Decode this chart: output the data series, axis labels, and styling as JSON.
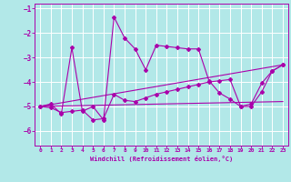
{
  "xlabel": "Windchill (Refroidissement éolien,°C)",
  "background_color": "#b2e8e8",
  "line_color": "#aa00aa",
  "grid_color": "#ffffff",
  "ylim": [
    -6.6,
    -0.8
  ],
  "xlim": [
    -0.5,
    23.5
  ],
  "yticks": [
    -6,
    -5,
    -4,
    -3,
    -2,
    -1
  ],
  "xticks": [
    0,
    1,
    2,
    3,
    4,
    5,
    6,
    7,
    8,
    9,
    10,
    11,
    12,
    13,
    14,
    15,
    16,
    17,
    18,
    19,
    20,
    21,
    22,
    23
  ],
  "series_jagged_x": [
    0,
    1,
    2,
    3,
    4,
    5,
    6,
    7,
    8,
    9,
    10,
    11,
    12,
    13,
    14,
    15,
    16,
    17,
    18,
    19,
    20,
    21,
    22,
    23
  ],
  "series_jagged_y": [
    -5.0,
    -4.9,
    -5.3,
    -2.6,
    -5.2,
    -5.0,
    -5.55,
    -1.35,
    -2.2,
    -2.65,
    -3.5,
    -2.5,
    -2.55,
    -2.6,
    -2.65,
    -2.65,
    -3.95,
    -4.45,
    -4.7,
    -5.0,
    -4.9,
    -4.05,
    -3.55,
    -3.3
  ],
  "series_smooth_x": [
    0,
    1,
    2,
    3,
    4,
    5,
    6,
    7,
    8,
    9,
    10,
    11,
    12,
    13,
    14,
    15,
    16,
    17,
    18,
    19,
    20,
    21,
    22,
    23
  ],
  "series_smooth_y": [
    -5.0,
    -5.05,
    -5.25,
    -5.2,
    -5.15,
    -5.55,
    -5.5,
    -4.5,
    -4.75,
    -4.8,
    -4.65,
    -4.5,
    -4.4,
    -4.3,
    -4.2,
    -4.1,
    -4.0,
    -3.95,
    -3.9,
    -5.0,
    -5.0,
    -4.4,
    -3.55,
    -3.3
  ],
  "trend1_x": [
    0,
    23
  ],
  "trend1_y": [
    -5.0,
    -3.3
  ],
  "trend2_x": [
    0,
    23
  ],
  "trend2_y": [
    -5.0,
    -4.8
  ]
}
